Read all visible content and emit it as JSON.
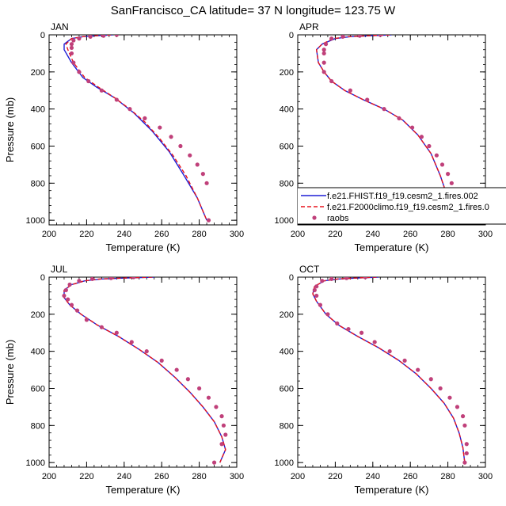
{
  "figure": {
    "title": "SanFrancisco_CA  latitude= 37 N longitude= 123.75 W"
  },
  "legend": {
    "entries": [
      {
        "label": "f.e21.FHIST.f19_f19.cesm2_1.fires.002",
        "color": "#1f1fd6",
        "style": "solid"
      },
      {
        "label": "f.e21.F2000climo.f19_f19.cesm2_1.fires.0",
        "color": "#e8141e",
        "style": "dashed"
      },
      {
        "label": "raobs",
        "color": "#c0407a",
        "style": "dot"
      }
    ]
  },
  "chart_data": [
    {
      "type": "line",
      "panel": "JAN",
      "xlabel": "Temperature (K)",
      "ylabel": "Pressure (mb)",
      "xlim": [
        200,
        300
      ],
      "ylim": [
        1025,
        0
      ],
      "y_reversed": true,
      "xticks": [
        200,
        220,
        240,
        260,
        280,
        300
      ],
      "yticks": [
        0,
        200,
        400,
        600,
        800,
        1000
      ],
      "series": [
        {
          "name": "f.e21.FHIST.f19_f19.cesm2_1.fires.002",
          "color": "#1f1fd6",
          "dash": "",
          "x": [
            234,
            225,
            218,
            212,
            208,
            208,
            212,
            218,
            225,
            235,
            245,
            255,
            264,
            272,
            279,
            284
          ],
          "y": [
            0,
            5,
            10,
            20,
            50,
            80,
            150,
            230,
            280,
            340,
            420,
            520,
            630,
            760,
            880,
            1000
          ]
        },
        {
          "name": "f.e21.F2000climo.f19_f19.cesm2_1.fires.0",
          "color": "#e8141e",
          "dash": "5,3",
          "x": [
            233,
            224,
            218,
            212,
            209,
            210,
            213,
            219,
            226,
            235,
            243,
            251,
            259,
            266,
            273,
            279,
            284
          ],
          "y": [
            0,
            5,
            10,
            20,
            50,
            80,
            150,
            230,
            280,
            340,
            400,
            470,
            560,
            650,
            760,
            880,
            1000
          ]
        },
        {
          "name": "raobs",
          "color": "#c0407a",
          "marker": "dot",
          "x": [
            236,
            229,
            222,
            216,
            213,
            212,
            212,
            212,
            213,
            216,
            221,
            228,
            236,
            243,
            251,
            259,
            265,
            270,
            275,
            279,
            282,
            284,
            285
          ],
          "y": [
            0,
            5,
            10,
            20,
            30,
            50,
            70,
            100,
            150,
            200,
            250,
            300,
            350,
            400,
            450,
            500,
            550,
            600,
            650,
            700,
            750,
            800,
            1000
          ]
        }
      ]
    },
    {
      "type": "line",
      "panel": "APR",
      "xlabel": "Temperature (K)",
      "ylabel": "",
      "xlim": [
        200,
        300
      ],
      "ylim": [
        1025,
        0
      ],
      "y_reversed": true,
      "xticks": [
        200,
        220,
        240,
        260,
        280,
        300
      ],
      "yticks": [
        0,
        200,
        400,
        600,
        800,
        1000
      ],
      "series": [
        {
          "name": "f.e21.FHIST.f19_f19.cesm2_1.fires.002",
          "color": "#1f1fd6",
          "dash": "",
          "x": [
            250,
            238,
            228,
            220,
            213,
            210,
            211,
            214,
            218,
            225,
            235,
            246,
            256,
            264,
            271,
            276,
            280,
            285
          ],
          "y": [
            0,
            5,
            10,
            20,
            50,
            80,
            150,
            200,
            250,
            300,
            350,
            400,
            460,
            540,
            640,
            760,
            880,
            1000
          ]
        },
        {
          "name": "f.e21.F2000climo.f19_f19.cesm2_1.fires.0",
          "color": "#e8141e",
          "dash": "5,3",
          "x": [
            249,
            237,
            227,
            219,
            213,
            210,
            211,
            214,
            218,
            225,
            235,
            246,
            256,
            264,
            271,
            276,
            280,
            285
          ],
          "y": [
            0,
            5,
            10,
            20,
            50,
            80,
            150,
            200,
            250,
            300,
            350,
            400,
            460,
            540,
            640,
            760,
            880,
            1000
          ]
        },
        {
          "name": "raobs",
          "color": "#c0407a",
          "marker": "dot",
          "x": [
            244,
            233,
            224,
            218,
            215,
            214,
            214,
            214,
            214,
            218,
            228,
            237,
            246,
            254,
            261,
            266,
            270,
            274,
            277,
            280,
            282,
            283,
            285
          ],
          "y": [
            0,
            5,
            10,
            20,
            50,
            80,
            100,
            150,
            200,
            250,
            300,
            350,
            400,
            450,
            500,
            550,
            600,
            650,
            700,
            750,
            800,
            900,
            1000
          ]
        }
      ]
    },
    {
      "type": "line",
      "panel": "JUL",
      "xlabel": "Temperature (K)",
      "ylabel": "Pressure (mb)",
      "xlim": [
        200,
        300
      ],
      "ylim": [
        1025,
        0
      ],
      "y_reversed": true,
      "xticks": [
        200,
        220,
        240,
        260,
        280,
        300
      ],
      "yticks": [
        0,
        200,
        400,
        600,
        800,
        1000
      ],
      "series": [
        {
          "name": "f.e21.FHIST.f19_f19.cesm2_1.fires.002",
          "color": "#1f1fd6",
          "dash": "",
          "x": [
            256,
            240,
            228,
            219,
            212,
            208,
            208,
            211,
            217,
            226,
            237,
            248,
            258,
            267,
            275,
            282,
            288,
            292,
            294,
            291
          ],
          "y": [
            0,
            5,
            10,
            20,
            40,
            70,
            110,
            150,
            200,
            260,
            320,
            390,
            460,
            540,
            620,
            700,
            780,
            860,
            930,
            1000
          ]
        },
        {
          "name": "f.e21.F2000climo.f19_f19.cesm2_1.fires.0",
          "color": "#e8141e",
          "dash": "5,3",
          "x": [
            255,
            239,
            227,
            219,
            212,
            208,
            208,
            211,
            217,
            226,
            237,
            248,
            258,
            267,
            275,
            282,
            288,
            292,
            294,
            291
          ],
          "y": [
            0,
            5,
            10,
            20,
            40,
            70,
            110,
            150,
            200,
            260,
            320,
            390,
            460,
            540,
            620,
            700,
            780,
            860,
            930,
            1000
          ]
        },
        {
          "name": "raobs",
          "color": "#c0407a",
          "marker": "dot",
          "x": [
            245,
            233,
            223,
            216,
            211,
            209,
            208,
            210,
            212,
            215,
            220,
            228,
            236,
            244,
            252,
            260,
            268,
            274,
            280,
            285,
            289,
            292,
            293,
            294,
            292,
            288
          ],
          "y": [
            0,
            5,
            10,
            20,
            40,
            70,
            100,
            120,
            150,
            180,
            230,
            270,
            300,
            350,
            400,
            450,
            500,
            550,
            600,
            650,
            700,
            750,
            800,
            850,
            900,
            1000
          ]
        }
      ]
    },
    {
      "type": "line",
      "panel": "OCT",
      "xlabel": "Temperature (K)",
      "ylabel": "",
      "xlim": [
        200,
        300
      ],
      "ylim": [
        1025,
        0
      ],
      "y_reversed": true,
      "xticks": [
        200,
        220,
        240,
        260,
        280,
        300
      ],
      "yticks": [
        0,
        200,
        400,
        600,
        800,
        1000
      ],
      "series": [
        {
          "name": "f.e21.FHIST.f19_f19.cesm2_1.fires.002",
          "color": "#1f1fd6",
          "dash": "",
          "x": [
            243,
            231,
            222,
            214,
            209,
            208,
            210,
            215,
            222,
            232,
            243,
            254,
            263,
            271,
            278,
            283,
            286,
            288,
            289
          ],
          "y": [
            0,
            5,
            10,
            20,
            50,
            90,
            130,
            200,
            260,
            320,
            380,
            450,
            520,
            600,
            680,
            760,
            840,
            920,
            1000
          ]
        },
        {
          "name": "f.e21.F2000climo.f19_f19.cesm2_1.fires.0",
          "color": "#e8141e",
          "dash": "5,3",
          "x": [
            242,
            230,
            221,
            214,
            209,
            208,
            210,
            215,
            222,
            232,
            243,
            254,
            263,
            271,
            278,
            283,
            286,
            288,
            289
          ],
          "y": [
            0,
            5,
            10,
            20,
            50,
            90,
            130,
            200,
            260,
            320,
            380,
            450,
            520,
            600,
            680,
            760,
            840,
            920,
            1000
          ]
        },
        {
          "name": "raobs",
          "color": "#c0407a",
          "marker": "dot",
          "x": [
            236,
            226,
            218,
            213,
            210,
            209,
            210,
            212,
            216,
            221,
            227,
            234,
            241,
            249,
            257,
            264,
            271,
            276,
            281,
            285,
            288,
            289,
            290,
            290,
            289
          ],
          "y": [
            0,
            5,
            10,
            20,
            50,
            70,
            100,
            150,
            200,
            250,
            280,
            300,
            350,
            400,
            450,
            500,
            550,
            600,
            650,
            700,
            750,
            800,
            900,
            950,
            1000
          ]
        }
      ]
    }
  ]
}
